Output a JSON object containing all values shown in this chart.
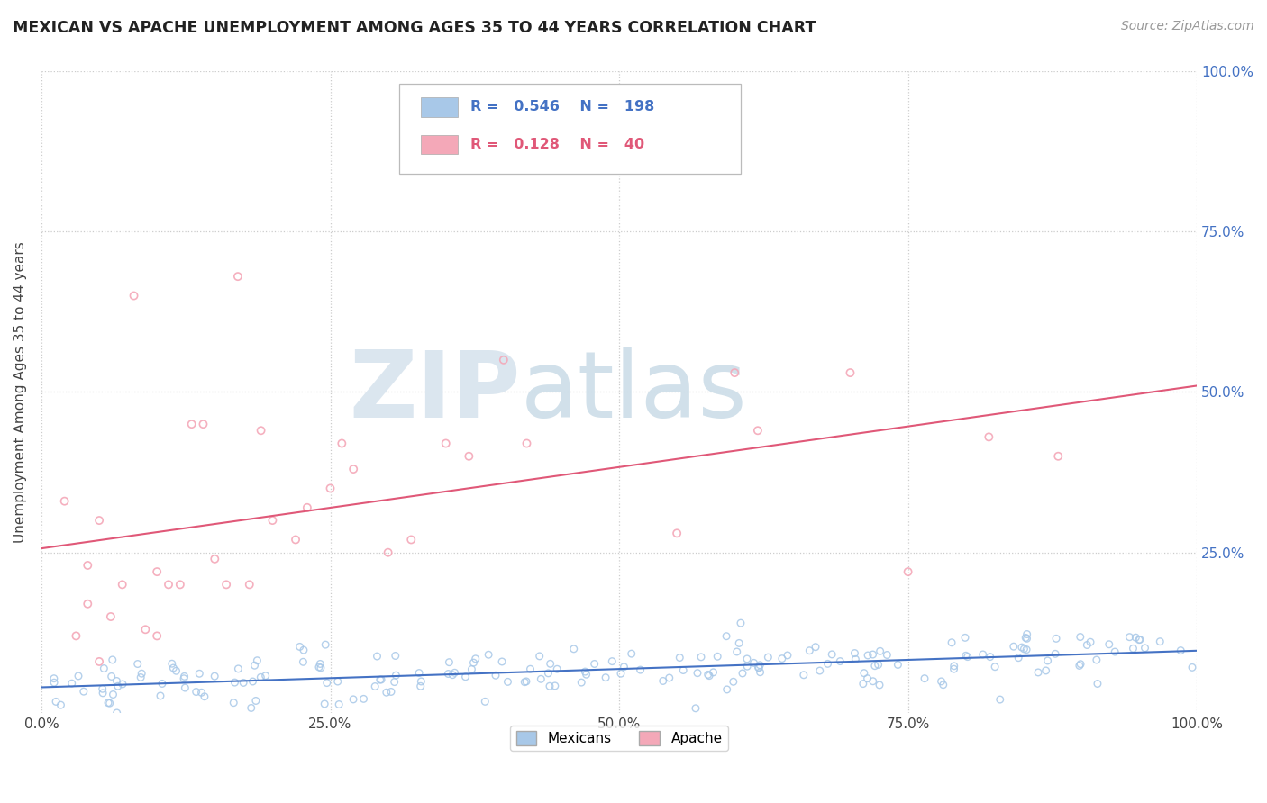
{
  "title": "MEXICAN VS APACHE UNEMPLOYMENT AMONG AGES 35 TO 44 YEARS CORRELATION CHART",
  "source": "Source: ZipAtlas.com",
  "ylabel": "Unemployment Among Ages 35 to 44 years",
  "xlim": [
    0,
    1.0
  ],
  "ylim": [
    0,
    1.0
  ],
  "xtick_labels": [
    "0.0%",
    "25.0%",
    "50.0%",
    "75.0%",
    "100.0%"
  ],
  "xtick_positions": [
    0.0,
    0.25,
    0.5,
    0.75,
    1.0
  ],
  "ytick_labels": [
    "25.0%",
    "50.0%",
    "75.0%",
    "100.0%"
  ],
  "ytick_positions": [
    0.25,
    0.5,
    0.75,
    1.0
  ],
  "mexicans_color": "#a8c8e8",
  "apache_color": "#f4a8b8",
  "trend_mexican_color": "#4472c4",
  "trend_apache_color": "#e05878",
  "legend_mexican_r": "0.546",
  "legend_mexican_n": "198",
  "legend_apache_r": "0.128",
  "legend_apache_n": "40",
  "legend_text_mexican_color": "#4472c4",
  "legend_text_apache_color": "#e05878",
  "background_color": "#ffffff",
  "grid_color": "#cccccc",
  "title_color": "#222222",
  "axis_label_color": "#444444",
  "tick_color": "#444444",
  "right_tick_color": "#4472c4",
  "apache_x": [
    0.02,
    0.03,
    0.04,
    0.04,
    0.05,
    0.05,
    0.06,
    0.07,
    0.08,
    0.09,
    0.1,
    0.1,
    0.11,
    0.12,
    0.13,
    0.14,
    0.15,
    0.16,
    0.17,
    0.18,
    0.19,
    0.2,
    0.22,
    0.23,
    0.25,
    0.26,
    0.27,
    0.3,
    0.32,
    0.35,
    0.37,
    0.4,
    0.42,
    0.55,
    0.6,
    0.62,
    0.7,
    0.75,
    0.82,
    0.88
  ],
  "apache_y": [
    0.33,
    0.12,
    0.23,
    0.17,
    0.3,
    0.08,
    0.15,
    0.2,
    0.65,
    0.13,
    0.22,
    0.12,
    0.2,
    0.2,
    0.45,
    0.45,
    0.24,
    0.2,
    0.68,
    0.2,
    0.44,
    0.3,
    0.27,
    0.32,
    0.35,
    0.42,
    0.38,
    0.25,
    0.27,
    0.42,
    0.4,
    0.55,
    0.42,
    0.28,
    0.53,
    0.44,
    0.53,
    0.22,
    0.43,
    0.4
  ]
}
